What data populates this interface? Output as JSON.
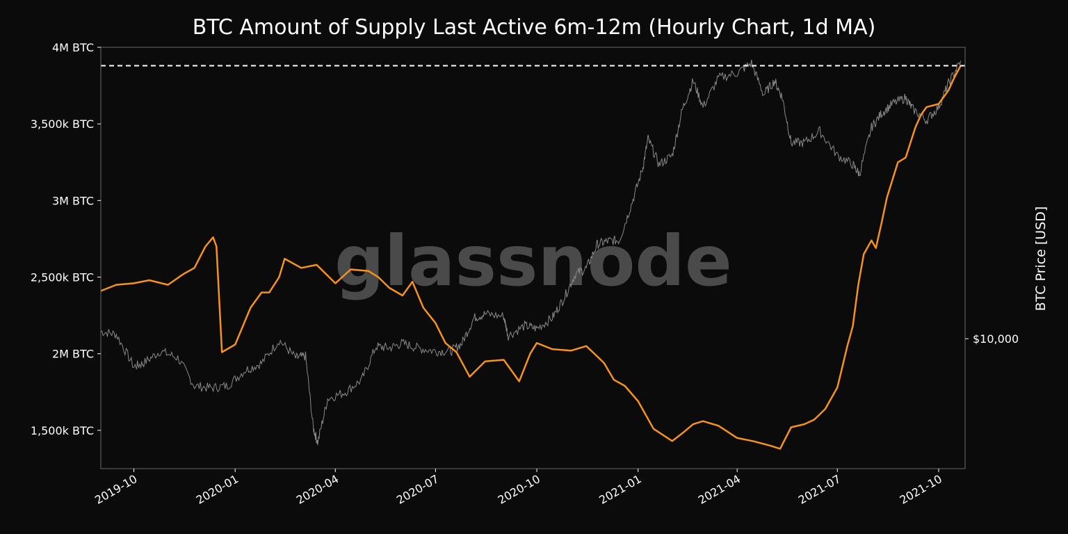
{
  "chart_data": {
    "type": "line",
    "title": "BTC Amount of Supply Last Active 6m-12m (Hourly Chart, 1d MA)",
    "y2label": "BTC Price [USD]",
    "watermark": "glassnode",
    "ylim": [
      1250000,
      4000000
    ],
    "y_ticks": [
      {
        "value": 1500000,
        "label": "1,500k BTC"
      },
      {
        "value": 2000000,
        "label": "2M BTC"
      },
      {
        "value": 2500000,
        "label": "2,500k BTC"
      },
      {
        "value": 3000000,
        "label": "3M BTC"
      },
      {
        "value": 3500000,
        "label": "3,500k BTC"
      },
      {
        "value": 4000000,
        "label": "4M BTC"
      }
    ],
    "y2_scale": "log",
    "y2lim": [
      4200,
      70000
    ],
    "y2_ticks": [
      {
        "value": 10000,
        "label": "$10,000"
      }
    ],
    "xlim": [
      "2019-09-01",
      "2021-10-25"
    ],
    "x_ticks": [
      {
        "value": "2019-10-01",
        "label": "2019-10"
      },
      {
        "value": "2020-01-01",
        "label": "2020-01"
      },
      {
        "value": "2020-04-01",
        "label": "2020-04"
      },
      {
        "value": "2020-07-01",
        "label": "2020-07"
      },
      {
        "value": "2020-10-01",
        "label": "2020-10"
      },
      {
        "value": "2021-01-01",
        "label": "2021-01"
      },
      {
        "value": "2021-04-01",
        "label": "2021-04"
      },
      {
        "value": "2021-07-01",
        "label": "2021-07"
      },
      {
        "value": "2021-10-01",
        "label": "2021-10"
      }
    ],
    "reference_line": {
      "value": 3880000,
      "style": "dashed",
      "color": "#ffffff"
    },
    "colors": {
      "supply": "#f7931a",
      "price": "#8a8a8a",
      "background": "#0b0b0b",
      "frame": "#6a6a6a"
    },
    "series": [
      {
        "axis": "left",
        "x": [
          "2019-09-01",
          "2019-09-15",
          "2019-10-01",
          "2019-10-15",
          "2019-11-01",
          "2019-11-15",
          "2019-11-25",
          "2019-12-05",
          "2019-12-12",
          "2019-12-15",
          "2019-12-20",
          "2020-01-01",
          "2020-01-15",
          "2020-01-25",
          "2020-02-01",
          "2020-02-10",
          "2020-02-15",
          "2020-03-01",
          "2020-03-15",
          "2020-04-01",
          "2020-04-15",
          "2020-05-01",
          "2020-05-10",
          "2020-05-20",
          "2020-06-01",
          "2020-06-10",
          "2020-06-20",
          "2020-07-01",
          "2020-07-10",
          "2020-07-20",
          "2020-08-01",
          "2020-08-15",
          "2020-09-01",
          "2020-09-15",
          "2020-09-25",
          "2020-10-01",
          "2020-10-15",
          "2020-11-01",
          "2020-11-15",
          "2020-12-01",
          "2020-12-10",
          "2020-12-20",
          "2021-01-01",
          "2021-01-15",
          "2021-02-01",
          "2021-02-10",
          "2021-02-20",
          "2021-03-01",
          "2021-03-15",
          "2021-04-01",
          "2021-04-15",
          "2021-05-01",
          "2021-05-10",
          "2021-05-20",
          "2021-06-01",
          "2021-06-10",
          "2021-06-20",
          "2021-07-01",
          "2021-07-05",
          "2021-07-10",
          "2021-07-15",
          "2021-07-20",
          "2021-07-25",
          "2021-08-01",
          "2021-08-05",
          "2021-08-10",
          "2021-08-15",
          "2021-08-25",
          "2021-09-01",
          "2021-09-10",
          "2021-09-15",
          "2021-09-20",
          "2021-10-01",
          "2021-10-10",
          "2021-10-15",
          "2021-10-21"
        ],
        "values": [
          2410000,
          2450000,
          2460000,
          2480000,
          2450000,
          2520000,
          2560000,
          2700000,
          2760000,
          2700000,
          2010000,
          2060000,
          2300000,
          2400000,
          2400000,
          2500000,
          2620000,
          2560000,
          2580000,
          2460000,
          2550000,
          2540000,
          2500000,
          2430000,
          2380000,
          2470000,
          2300000,
          2200000,
          2070000,
          2010000,
          1850000,
          1950000,
          1960000,
          1820000,
          2000000,
          2070000,
          2030000,
          2020000,
          2050000,
          1940000,
          1830000,
          1790000,
          1690000,
          1510000,
          1430000,
          1480000,
          1540000,
          1560000,
          1530000,
          1450000,
          1430000,
          1400000,
          1380000,
          1520000,
          1540000,
          1570000,
          1640000,
          1780000,
          1900000,
          2050000,
          2180000,
          2450000,
          2650000,
          2740000,
          2690000,
          2850000,
          3020000,
          3250000,
          3280000,
          3480000,
          3560000,
          3610000,
          3630000,
          3720000,
          3800000,
          3880000
        ]
      },
      {
        "axis": "right",
        "x": [
          "2019-09-01",
          "2019-09-15",
          "2019-10-01",
          "2019-10-10",
          "2019-10-25",
          "2019-11-10",
          "2019-11-25",
          "2019-12-10",
          "2019-12-25",
          "2020-01-10",
          "2020-01-25",
          "2020-02-10",
          "2020-02-25",
          "2020-03-05",
          "2020-03-12",
          "2020-03-16",
          "2020-03-25",
          "2020-04-10",
          "2020-04-25",
          "2020-05-08",
          "2020-05-20",
          "2020-06-01",
          "2020-06-15",
          "2020-07-01",
          "2020-07-15",
          "2020-07-25",
          "2020-08-05",
          "2020-08-15",
          "2020-09-01",
          "2020-09-05",
          "2020-09-20",
          "2020-10-01",
          "2020-10-15",
          "2020-10-25",
          "2020-11-05",
          "2020-11-15",
          "2020-11-25",
          "2020-12-05",
          "2020-12-15",
          "2020-12-25",
          "2021-01-05",
          "2021-01-10",
          "2021-01-20",
          "2021-02-01",
          "2021-02-10",
          "2021-02-20",
          "2021-03-01",
          "2021-03-15",
          "2021-04-01",
          "2021-04-14",
          "2021-04-25",
          "2021-05-05",
          "2021-05-12",
          "2021-05-20",
          "2021-06-01",
          "2021-06-15",
          "2021-07-01",
          "2021-07-15",
          "2021-07-21",
          "2021-08-01",
          "2021-08-10",
          "2021-08-20",
          "2021-09-01",
          "2021-09-07",
          "2021-09-20",
          "2021-10-01",
          "2021-10-10",
          "2021-10-21"
        ],
        "values": [
          10500,
          10300,
          8300,
          8500,
          9200,
          8800,
          7300,
          7200,
          7300,
          8100,
          8500,
          9900,
          8800,
          8900,
          5500,
          5000,
          6700,
          7000,
          7600,
          9500,
          9400,
          9700,
          9400,
          9200,
          9200,
          9700,
          11500,
          11800,
          11600,
          10200,
          10900,
          10700,
          11500,
          13000,
          15400,
          16000,
          18800,
          19200,
          19300,
          24000,
          31000,
          38000,
          32000,
          34000,
          46000,
          56000,
          47000,
          57000,
          59000,
          63000,
          51000,
          56000,
          50000,
          37000,
          37000,
          40000,
          34000,
          32000,
          30000,
          41000,
          45000,
          48000,
          50000,
          46500,
          43000,
          47000,
          55000,
          64000
        ]
      }
    ]
  }
}
